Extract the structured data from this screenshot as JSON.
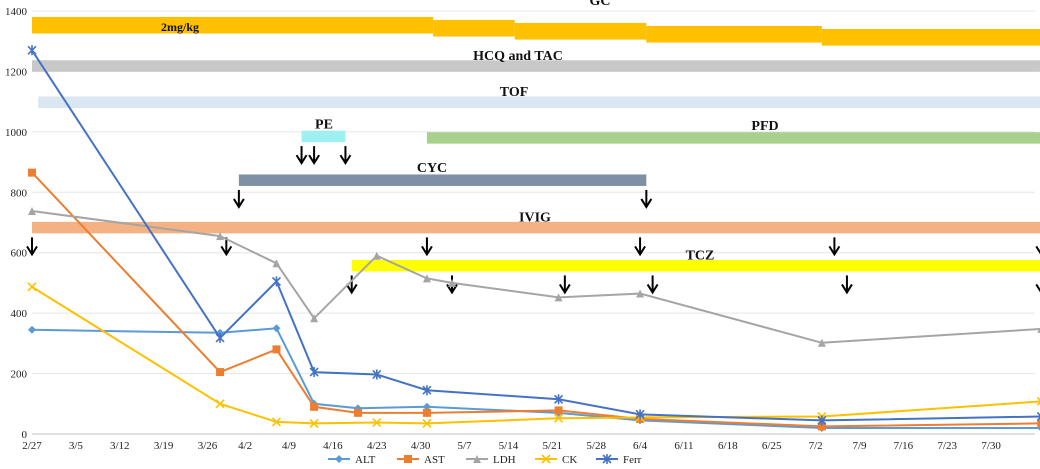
{
  "chart_data": {
    "type": "line",
    "y_axis": {
      "min": 0,
      "max": 1400,
      "ticks": [
        0,
        200,
        400,
        600,
        800,
        1000,
        1200,
        1400
      ]
    },
    "x_axis": {
      "range_days": [
        0,
        160
      ],
      "tick_labels": [
        "2/27",
        "3/5",
        "3/12",
        "3/19",
        "3/26",
        "4/2",
        "4/9",
        "4/16",
        "4/23",
        "4/30",
        "5/7",
        "5/14",
        "5/21",
        "5/28",
        "6/4",
        "6/11",
        "6/18",
        "6/25",
        "7/2",
        "7/9",
        "7/16",
        "7/23",
        "7/30"
      ],
      "tick_days": [
        0,
        7,
        14,
        21,
        28,
        34,
        41,
        48,
        55,
        62,
        69,
        76,
        83,
        90,
        97,
        104,
        111,
        118,
        125,
        132,
        139,
        146,
        153
      ]
    },
    "series": [
      {
        "name": "ALT",
        "color": "#5b9bd5",
        "marker": "diamond",
        "points": [
          [
            0,
            345
          ],
          [
            30,
            335
          ],
          [
            39,
            350
          ],
          [
            45,
            100
          ],
          [
            52,
            85
          ],
          [
            63,
            90
          ],
          [
            84,
            70
          ],
          [
            97,
            45
          ],
          [
            126,
            20
          ],
          [
            161,
            20
          ]
        ]
      },
      {
        "name": "AST",
        "color": "#ed7d31",
        "marker": "square",
        "points": [
          [
            0,
            865
          ],
          [
            30,
            205
          ],
          [
            39,
            280
          ],
          [
            45,
            90
          ],
          [
            52,
            70
          ],
          [
            63,
            70
          ],
          [
            84,
            78
          ],
          [
            97,
            50
          ],
          [
            126,
            25
          ],
          [
            161,
            35
          ]
        ]
      },
      {
        "name": "LDH",
        "color": "#a5a5a5",
        "marker": "triangle",
        "points": [
          [
            0,
            738
          ],
          [
            30,
            655
          ],
          [
            39,
            565
          ],
          [
            45,
            383
          ],
          [
            55,
            590
          ],
          [
            63,
            515
          ],
          [
            67,
            500
          ],
          [
            84,
            452
          ],
          [
            97,
            465
          ],
          [
            126,
            302
          ],
          [
            161,
            348
          ]
        ]
      },
      {
        "name": "CK",
        "color": "#ffc000",
        "marker": "x",
        "points": [
          [
            0,
            487
          ],
          [
            30,
            100
          ],
          [
            39,
            40
          ],
          [
            45,
            35
          ],
          [
            55,
            38
          ],
          [
            63,
            35
          ],
          [
            84,
            52
          ],
          [
            97,
            55
          ],
          [
            126,
            58
          ],
          [
            161,
            108
          ]
        ]
      },
      {
        "name": "Ferr",
        "color": "#4472c4",
        "marker": "star",
        "points": [
          [
            0,
            1270
          ],
          [
            30,
            318
          ],
          [
            39,
            505
          ],
          [
            45,
            205
          ],
          [
            55,
            197
          ],
          [
            63,
            145
          ],
          [
            84,
            115
          ],
          [
            97,
            65
          ],
          [
            126,
            45
          ],
          [
            161,
            58
          ]
        ]
      }
    ],
    "treatment_bars": [
      {
        "label": "GC",
        "color": "#ffc000",
        "segments": [
          [
            0,
            64,
            1353
          ],
          [
            64,
            77,
            1343
          ],
          [
            77,
            98,
            1333
          ],
          [
            98,
            126,
            1323
          ],
          [
            126,
            161,
            1313
          ]
        ],
        "thickness": 55,
        "sub_label": "2mg/kg"
      },
      {
        "label": "HCQ  and  TAC",
        "color": "#c8c8c8",
        "start": 0,
        "end": 161,
        "y": 1218,
        "thickness": 38
      },
      {
        "label": "TOF",
        "color": "#dae6f2",
        "start": 1,
        "end": 161,
        "y": 1098,
        "thickness": 38
      },
      {
        "label": "PE",
        "color": "#9ff0f0",
        "start": 43,
        "end": 50,
        "y": 985,
        "thickness": 38,
        "arrow_days": [
          43,
          45,
          50
        ]
      },
      {
        "label": "PFD",
        "color": "#a9d18e",
        "start": 63,
        "end": 161,
        "y": 980,
        "thickness": 38
      },
      {
        "label": "CYC",
        "color": "#7f8fa6",
        "start": 33,
        "end": 98,
        "y": 840,
        "thickness": 38,
        "arrow_days": [
          33,
          98
        ]
      },
      {
        "label": "IVIG",
        "color": "#f4b183",
        "start": 0,
        "end": 161,
        "y": 683,
        "thickness": 38,
        "arrow_days": [
          0,
          31,
          63,
          97,
          128,
          161
        ]
      },
      {
        "label": "TCZ",
        "color": "#ffff00",
        "start": 51,
        "end": 161,
        "y": 557,
        "thickness": 38,
        "arrow_days": [
          51,
          67,
          85,
          99,
          130,
          161
        ]
      }
    ]
  }
}
